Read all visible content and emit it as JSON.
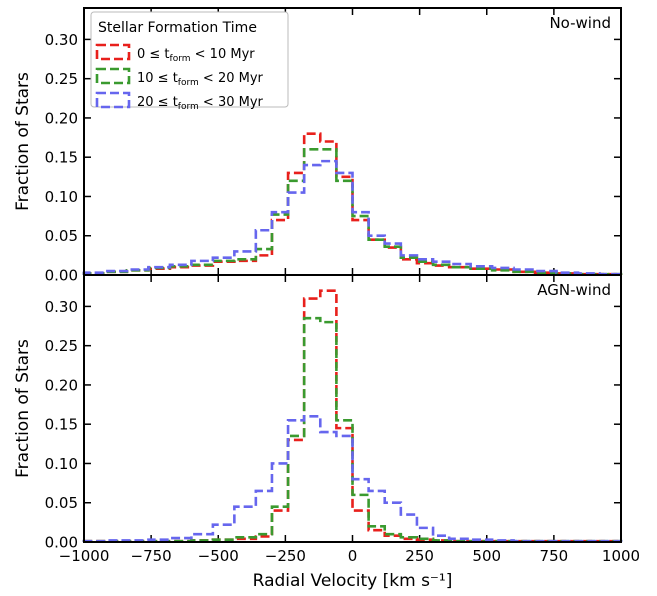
{
  "chart_data": {
    "type": "line",
    "xlabel": "Radial Velocity [km s⁻¹]",
    "xlim": [
      -1000,
      1000
    ],
    "xticks": [
      "−1000",
      "−750",
      "−500",
      "−250",
      "0",
      "250",
      "500",
      "750",
      "1000"
    ],
    "xtick_values": [
      -1000,
      -750,
      -500,
      -250,
      0,
      250,
      500,
      750,
      1000
    ],
    "legend": {
      "title": "Stellar Formation Time",
      "placement": "top-left",
      "entries": [
        {
          "prefix": "0 ≤ ",
          "t": "t",
          "sub": "form",
          "suffix": " < 10 Myr",
          "color": "#e8201c"
        },
        {
          "prefix": "10 ≤ ",
          "t": "t",
          "sub": "form",
          "suffix": " < 20 Myr",
          "color": "#3a9a2f"
        },
        {
          "prefix": "20 ≤ ",
          "t": "t",
          "sub": "form",
          "suffix": " < 30 Myr",
          "color": "#6666ee"
        }
      ]
    },
    "bin_edges": [
      -1000,
      -920,
      -840,
      -760,
      -680,
      -600,
      -520,
      -440,
      -360,
      -300,
      -240,
      -180,
      -120,
      -60,
      0,
      60,
      120,
      180,
      240,
      300,
      360,
      440,
      520,
      600,
      680,
      760,
      840,
      920,
      1000
    ],
    "panels": [
      {
        "label": "No-wind",
        "ylabel": "Fraction of Stars",
        "ylim": [
          0,
          0.34
        ],
        "yticks": [
          "0.00",
          "0.05",
          "0.10",
          "0.15",
          "0.20",
          "0.25",
          "0.30"
        ],
        "ytick_values": [
          0,
          0.05,
          0.1,
          0.15,
          0.2,
          0.25,
          0.3
        ],
        "series": [
          {
            "color": "#e8201c",
            "values": [
              0.002,
              0.004,
              0.006,
              0.008,
              0.01,
              0.012,
              0.017,
              0.018,
              0.025,
              0.07,
              0.13,
              0.18,
              0.17,
              0.125,
              0.07,
              0.045,
              0.035,
              0.02,
              0.015,
              0.012,
              0.01,
              0.008,
              0.007,
              0.004,
              0.003,
              0.002,
              0.001,
              0.001
            ]
          },
          {
            "color": "#3a9a2f",
            "values": [
              0.002,
              0.004,
              0.006,
              0.009,
              0.011,
              0.013,
              0.018,
              0.02,
              0.033,
              0.077,
              0.12,
              0.16,
              0.16,
              0.12,
              0.075,
              0.045,
              0.036,
              0.022,
              0.017,
              0.013,
              0.01,
              0.008,
              0.006,
              0.004,
              0.003,
              0.002,
              0.001,
              0.001
            ]
          },
          {
            "color": "#6666ee",
            "values": [
              0.003,
              0.005,
              0.007,
              0.01,
              0.013,
              0.018,
              0.022,
              0.03,
              0.057,
              0.08,
              0.105,
              0.14,
              0.145,
              0.13,
              0.08,
              0.05,
              0.04,
              0.025,
              0.02,
              0.017,
              0.014,
              0.011,
              0.009,
              0.007,
              0.005,
              0.003,
              0.002,
              0.001
            ]
          }
        ]
      },
      {
        "label": "AGN-wind",
        "ylabel": "Fraction of Stars",
        "ylim": [
          0,
          0.34
        ],
        "yticks": [
          "0.00",
          "0.05",
          "0.10",
          "0.15",
          "0.20",
          "0.25",
          "0.30"
        ],
        "ytick_values": [
          0,
          0.05,
          0.1,
          0.15,
          0.2,
          0.25,
          0.3
        ],
        "series": [
          {
            "color": "#e8201c",
            "values": [
              0.001,
              0.001,
              0.001,
              0.001,
              0.001,
              0.002,
              0.003,
              0.004,
              0.007,
              0.04,
              0.13,
              0.31,
              0.32,
              0.145,
              0.04,
              0.015,
              0.008,
              0.004,
              0.003,
              0.002,
              0.001,
              0.001,
              0.001,
              0.001,
              0.001,
              0.001,
              0.001,
              0.001
            ]
          },
          {
            "color": "#3a9a2f",
            "values": [
              0.001,
              0.001,
              0.001,
              0.001,
              0.001,
              0.002,
              0.003,
              0.006,
              0.01,
              0.045,
              0.135,
              0.285,
              0.28,
              0.155,
              0.06,
              0.02,
              0.01,
              0.006,
              0.004,
              0.002,
              0.001,
              0.001,
              0.001,
              0.001,
              0.001,
              0.001,
              0.001,
              0.001
            ]
          },
          {
            "color": "#6666ee",
            "values": [
              0.001,
              0.002,
              0.002,
              0.003,
              0.005,
              0.01,
              0.022,
              0.045,
              0.065,
              0.1,
              0.155,
              0.16,
              0.14,
              0.135,
              0.08,
              0.065,
              0.05,
              0.035,
              0.018,
              0.008,
              0.004,
              0.003,
              0.002,
              0.001,
              0.001,
              0.001,
              0.001,
              0.001
            ]
          }
        ]
      }
    ]
  }
}
